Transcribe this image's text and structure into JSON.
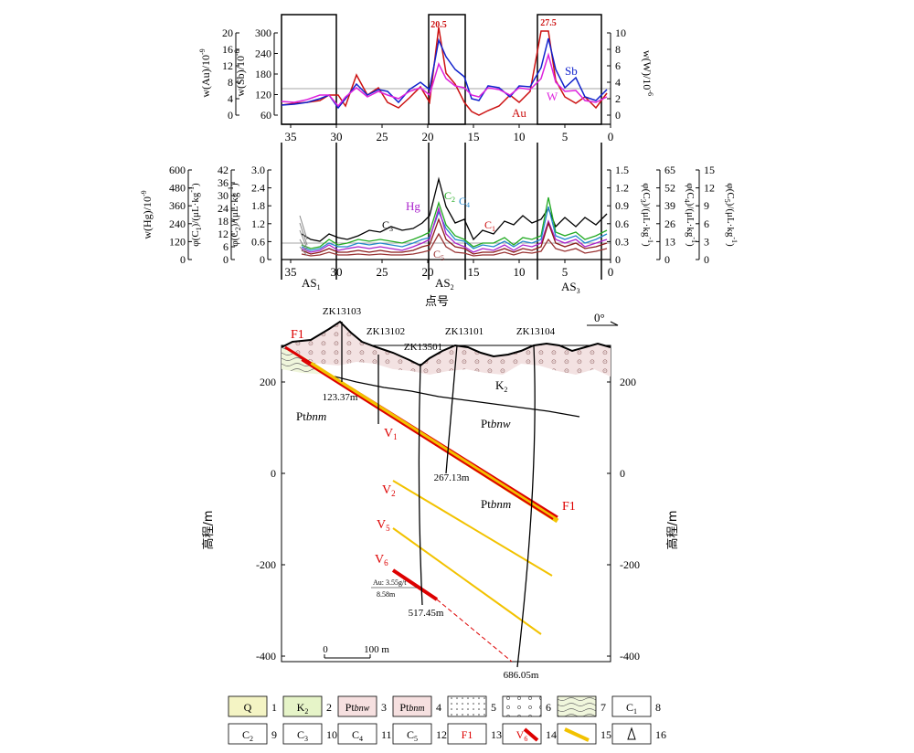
{
  "top_panel": {
    "left_axis1_label": "w(Au)/10",
    "left_axis1_exp": "-9",
    "left_axis1_ticks": [
      "20",
      "16",
      "12",
      "8",
      "4",
      "0"
    ],
    "left_axis2_label": "w(Sb)/10",
    "left_axis2_exp": "-6",
    "left_axis2_ticks": [
      "300",
      "240",
      "180",
      "120",
      "60"
    ],
    "right_axis_label": "w(W)/10",
    "right_axis_exp": "-6",
    "right_axis_ticks": [
      "10",
      "8",
      "6",
      "4",
      "2",
      "0"
    ],
    "x_ticks": [
      "35",
      "30",
      "25",
      "20",
      "15",
      "10",
      "5",
      "0"
    ],
    "peak_label_1": "20.5",
    "peak_label_2": "27.5",
    "series_labels": {
      "sb": "Sb",
      "w": "W",
      "au": "Au"
    }
  },
  "mid_panel": {
    "left_axes": [
      {
        "label": "w(Hg)/10",
        "exp": "-9",
        "ticks": [
          "600",
          "480",
          "360",
          "240",
          "120",
          "0"
        ]
      },
      {
        "label": "φ(C",
        "sub": "1",
        "unit": ")/(μL·kg",
        "exp": "-1",
        "close": ")",
        "ticks": [
          "42",
          "36",
          "30",
          "24",
          "18",
          "12",
          "6",
          "0"
        ]
      },
      {
        "label": "φ(C",
        "sub": "2",
        "unit": ")/(μL·kg",
        "exp": "-1",
        "close": ")",
        "ticks": [
          "3.0",
          "2.4",
          "1.8",
          "1.2",
          "0.6",
          "0"
        ]
      }
    ],
    "right_axes": [
      {
        "label": "φ(C",
        "sub": "3",
        "unit": ")/(μL·kg",
        "exp": "-1",
        "close": ")",
        "ticks": [
          "1.5",
          "1.2",
          "0.9",
          "0.6",
          "0.3",
          "0"
        ]
      },
      {
        "label": "φ(C",
        "sub": "4",
        "unit": ")/(μL·kg",
        "exp": "-1",
        "close": ")",
        "ticks": [
          "65",
          "52",
          "39",
          "26",
          "13",
          "0"
        ]
      },
      {
        "label": "φ(C",
        "sub": "5",
        "unit": ")/(μL·kg",
        "exp": "-1",
        "close": ")",
        "ticks": [
          "15",
          "12",
          "9",
          "6",
          "3",
          "0"
        ]
      }
    ],
    "x_ticks": [
      "35",
      "30",
      "25",
      "20",
      "15",
      "10",
      "5",
      "0"
    ],
    "anomaly_labels": [
      "AS",
      "AS",
      "AS"
    ],
    "anomaly_subs": [
      "1",
      "2",
      "3"
    ],
    "x_axis_title": "点号",
    "series_labels": {
      "hg": "Hg",
      "c2": "C",
      "c2_sub": "2",
      "c4": "C",
      "c4_sub": "4",
      "c3": "C",
      "c3_sub": "3",
      "c1": "C",
      "c1_sub": "1",
      "c5": "C",
      "c5_sub": "5"
    }
  },
  "section": {
    "y_axis_title": "高程/m",
    "y_ticks": [
      "200",
      "0",
      "-200",
      "-400"
    ],
    "orientation": "0°",
    "drillholes": [
      "ZK13103",
      "ZK13102",
      "ZK13501",
      "ZK13101",
      "ZK13104"
    ],
    "depths": [
      "123.37m",
      "267.13m",
      "517.45m",
      "686.05m"
    ],
    "fault": "F1",
    "veins": [
      {
        "t": "V",
        "s": "1"
      },
      {
        "t": "V",
        "s": "2"
      },
      {
        "t": "V",
        "s": "5"
      },
      {
        "t": "V",
        "s": "6"
      }
    ],
    "units": {
      "k2": "K",
      "k2_sub": "2",
      "bnw": "bnw",
      "bnm": "bnm",
      "pt": "Pt"
    },
    "assay_top": "Au: 3.55g/t",
    "assay_bottom": "8.58m",
    "scale_0": "0",
    "scale_100": "100 m"
  },
  "legend": [
    {
      "label": "Q",
      "num": "1"
    },
    {
      "label": "K",
      "sub": "2",
      "num": "2"
    },
    {
      "label": "Pt",
      "ital": "bnw",
      "num": "3"
    },
    {
      "label": "Pt",
      "ital": "bnm",
      "num": "4"
    },
    {
      "label": "",
      "num": "5"
    },
    {
      "label": "",
      "num": "6"
    },
    {
      "label": "",
      "num": "7"
    },
    {
      "label": "C",
      "sub": "1",
      "num": "8"
    },
    {
      "label": "C",
      "sub": "2",
      "num": "9"
    },
    {
      "label": "C",
      "sub": "3",
      "num": "10"
    },
    {
      "label": "C",
      "sub": "4",
      "num": "11"
    },
    {
      "label": "C",
      "sub": "5",
      "num": "12"
    },
    {
      "label": "F1",
      "num": "13"
    },
    {
      "label": "V",
      "sub": "6",
      "num": "14"
    },
    {
      "label": "",
      "num": "15"
    },
    {
      "label": "",
      "num": "16"
    }
  ],
  "colors": {
    "au": "#cc1111",
    "sb": "#1122cc",
    "w": "#dd22dd",
    "hg": "#aa22cc",
    "c1": "#8b1a1a",
    "c2": "#22aa22",
    "c3": "#000000",
    "c4": "#2288cc",
    "c5": "#993333",
    "fault": "#dd0000",
    "vein": "#f2c200",
    "k2": "#f0e4e4",
    "q": "#f4f4c4",
    "k2fill": "#e6f4c8"
  }
}
